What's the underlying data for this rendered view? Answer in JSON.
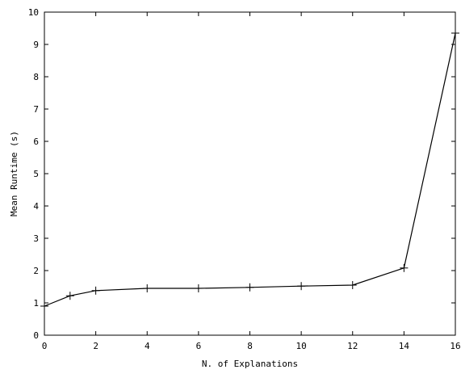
{
  "chart_data": {
    "type": "line",
    "title": "",
    "xlabel": "N. of Explanations",
    "ylabel": "Mean Runtime (s)",
    "xlim": [
      0,
      16
    ],
    "ylim": [
      0,
      10
    ],
    "xticks": [
      0,
      2,
      4,
      6,
      8,
      10,
      12,
      14,
      16
    ],
    "yticks": [
      0,
      1,
      2,
      3,
      4,
      5,
      6,
      7,
      8,
      9,
      10
    ],
    "grid": false,
    "legend": "none",
    "marker": "plus",
    "color": "#000000",
    "series": [
      {
        "x": [
          0,
          1,
          2,
          4,
          6,
          8,
          10,
          12,
          14,
          16
        ],
        "y": [
          0.9,
          1.22,
          1.38,
          1.45,
          1.45,
          1.48,
          1.52,
          1.55,
          2.08,
          9.35
        ]
      }
    ]
  }
}
